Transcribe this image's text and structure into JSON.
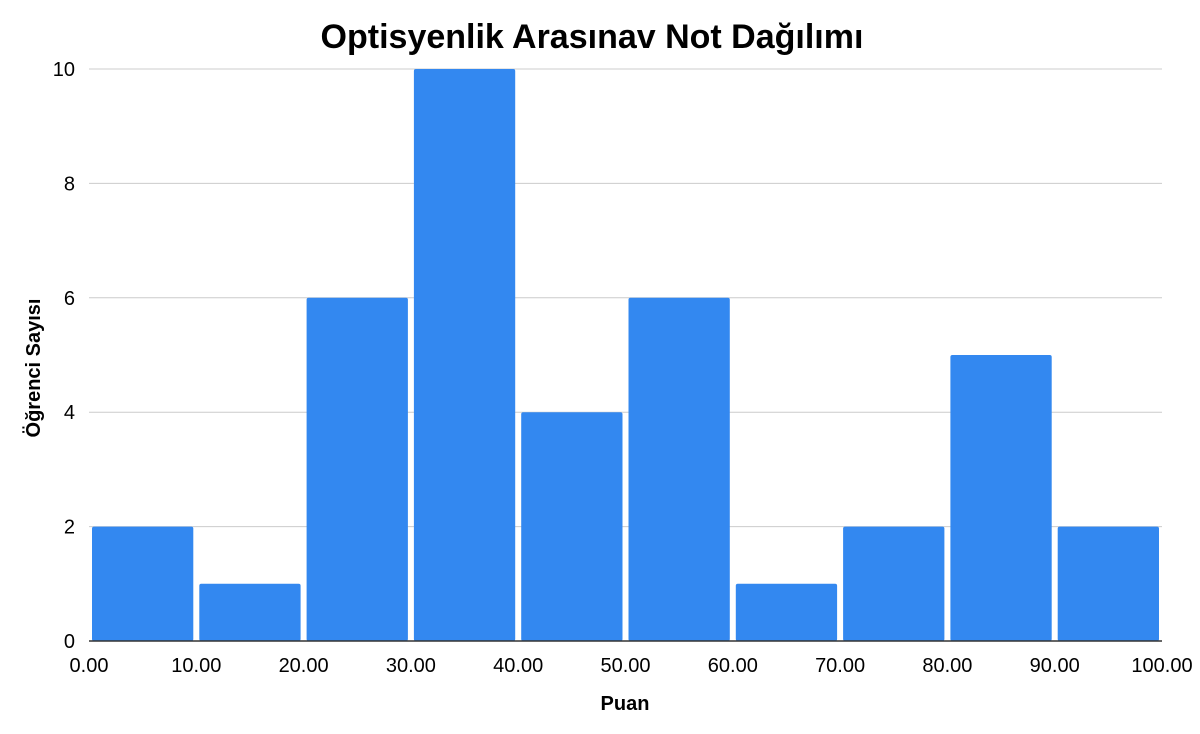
{
  "chart_data": {
    "type": "bar",
    "title": "Optisyenlik Arasınav Not Dağılımı",
    "xlabel": "Puan",
    "ylabel": "Öğrenci Sayısı",
    "bin_edges": [
      "0.00",
      "10.00",
      "20.00",
      "30.00",
      "40.00",
      "50.00",
      "60.00",
      "70.00",
      "80.00",
      "90.00",
      "100.00"
    ],
    "values": [
      2,
      1,
      6,
      10,
      4,
      6,
      1,
      2,
      5,
      2
    ],
    "y_ticks": [
      "0",
      "2",
      "4",
      "6",
      "8",
      "10"
    ],
    "ylim": [
      0,
      10
    ],
    "xlim": [
      0,
      100
    ],
    "grid": true,
    "bar_color": "#3388f0"
  }
}
